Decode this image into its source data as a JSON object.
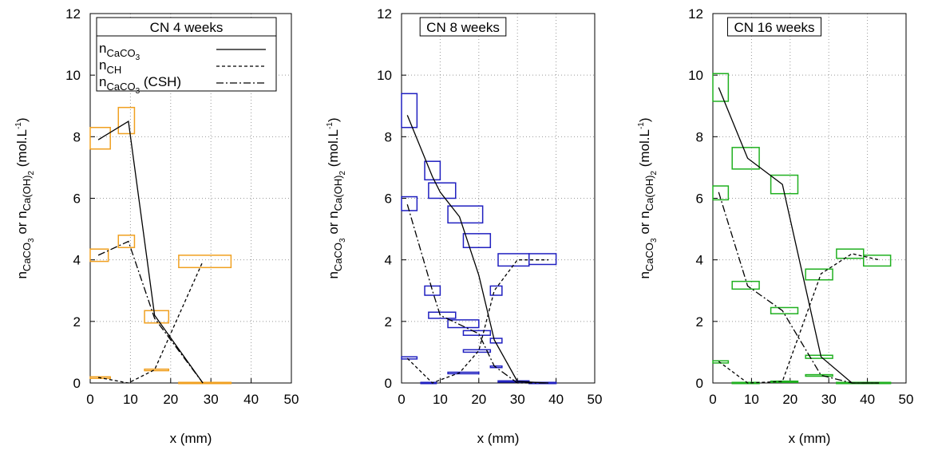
{
  "chart_data": [
    {
      "type": "line",
      "title": "CN 4 weeks",
      "legend": true,
      "grid": true,
      "x_label": "x (mm)",
      "y_label": [
        {
          "text": "n",
          "level": 0
        },
        {
          "text": "CaCO",
          "level": 1
        },
        {
          "text": "3",
          "level": 2
        },
        {
          "text": " or n",
          "level": 0
        },
        {
          "text": "Ca(OH)",
          "level": 1
        },
        {
          "text": "2",
          "level": 2
        },
        {
          "text": " (mol.L",
          "level": 0
        },
        {
          "text": "-1",
          "level": -1
        },
        {
          "text": ")",
          "level": 0
        }
      ],
      "xlim": [
        0,
        50
      ],
      "ylim": [
        0,
        12
      ],
      "xticks": [
        0,
        10,
        20,
        30,
        40,
        50
      ],
      "yticks": [
        0,
        2,
        4,
        6,
        8,
        10,
        12
      ],
      "series": [
        {
          "name": [
            {
              "text": "n",
              "level": 0
            },
            {
              "text": "CaCO",
              "level": 1
            },
            {
              "text": "3",
              "level": 2
            }
          ],
          "style": "solid",
          "color": "#000000",
          "x": [
            2,
            9.5,
            16,
            28
          ],
          "values": [
            7.9,
            8.5,
            2.2,
            0
          ]
        },
        {
          "name": [
            {
              "text": "n",
              "level": 0
            },
            {
              "text": "CH",
              "level": 1
            }
          ],
          "style": "dashed",
          "color": "#000000",
          "x": [
            2,
            9.5,
            16,
            28
          ],
          "values": [
            0.18,
            0,
            0.43,
            3.95
          ]
        },
        {
          "name": [
            {
              "text": "n",
              "level": 0
            },
            {
              "text": "CaCO",
              "level": 1
            },
            {
              "text": "3",
              "level": 2
            },
            {
              "text": " (CSH)",
              "level": 0
            }
          ],
          "style": "dashdot",
          "color": "#000000",
          "x": [
            2,
            9.5,
            16,
            28
          ],
          "values": [
            4.15,
            4.6,
            2.1,
            0
          ]
        }
      ],
      "boxes": {
        "color": "#f0a020",
        "x_low": [
          0,
          7,
          0,
          7,
          13.5,
          22,
          0,
          13.5,
          22
        ],
        "x_high": [
          5,
          11,
          4.5,
          11,
          19.5,
          35,
          5,
          19.5,
          35
        ],
        "y_low": [
          7.6,
          8.1,
          3.95,
          4.4,
          1.95,
          3.75,
          0.15,
          0.4,
          0
        ],
        "y_high": [
          8.3,
          8.95,
          4.35,
          4.8,
          2.35,
          4.15,
          0.2,
          0.45,
          0.02
        ]
      }
    },
    {
      "type": "line",
      "title": "CN 8 weeks",
      "legend": false,
      "grid": true,
      "x_label": "x (mm)",
      "y_label": [
        {
          "text": "n",
          "level": 0
        },
        {
          "text": "CaCO",
          "level": 1
        },
        {
          "text": "3",
          "level": 2
        },
        {
          "text": " or n",
          "level": 0
        },
        {
          "text": "Ca(OH)",
          "level": 1
        },
        {
          "text": "2",
          "level": 2
        },
        {
          "text": " (mol.L",
          "level": 0
        },
        {
          "text": "-1",
          "level": -1
        },
        {
          "text": ")",
          "level": 0
        }
      ],
      "xlim": [
        0,
        50
      ],
      "ylim": [
        0,
        12
      ],
      "xticks": [
        0,
        10,
        20,
        30,
        40,
        50
      ],
      "yticks": [
        0,
        2,
        4,
        6,
        8,
        10,
        12
      ],
      "series": [
        {
          "style": "solid",
          "color": "#000000",
          "x": [
            1.5,
            8,
            10,
            15,
            20,
            24,
            30,
            38
          ],
          "values": [
            8.7,
            6.7,
            6.2,
            5.4,
            3.5,
            1.4,
            0.05,
            0
          ]
        },
        {
          "style": "dashed",
          "color": "#000000",
          "x": [
            1.5,
            8,
            10,
            15,
            20,
            24,
            30,
            38
          ],
          "values": [
            0.8,
            0,
            0.1,
            0.33,
            1.05,
            3,
            4,
            4
          ]
        },
        {
          "style": "dashdot",
          "color": "#000000",
          "x": [
            1.5,
            8,
            10,
            15,
            20,
            24,
            30,
            38
          ],
          "values": [
            5.8,
            3,
            2.2,
            1.9,
            1.6,
            0.55,
            0,
            0
          ]
        }
      ],
      "boxes": {
        "color": "#2020c0",
        "x_low": [
          0,
          0,
          0,
          6,
          6,
          5,
          7,
          7,
          12,
          12,
          12,
          16,
          16,
          16,
          23,
          23,
          23,
          25,
          25,
          33,
          33
        ],
        "x_high": [
          4,
          4,
          4,
          10,
          10,
          9,
          14,
          14,
          21,
          20,
          20,
          23,
          23,
          23,
          26,
          26,
          26,
          33,
          33,
          40,
          40
        ],
        "y_low": [
          8.3,
          5.6,
          0.78,
          6.6,
          2.85,
          0,
          6,
          2.1,
          5.2,
          1.8,
          0.3,
          4.4,
          1.55,
          1,
          2.85,
          1.3,
          0.5,
          3.8,
          0.03,
          3.85,
          0
        ],
        "y_high": [
          9.4,
          6.05,
          0.85,
          7.2,
          3.15,
          0.02,
          6.5,
          2.3,
          5.75,
          2.05,
          0.35,
          4.85,
          1.7,
          1.08,
          3.15,
          1.45,
          0.55,
          4.2,
          0.07,
          4.2,
          0.02
        ]
      }
    },
    {
      "type": "line",
      "title": "CN 16 weeks",
      "legend": false,
      "grid": true,
      "x_label": "x (mm)",
      "y_label": [
        {
          "text": "n",
          "level": 0
        },
        {
          "text": "CaCO",
          "level": 1
        },
        {
          "text": "3",
          "level": 2
        },
        {
          "text": " or n",
          "level": 0
        },
        {
          "text": "Ca(OH)",
          "level": 1
        },
        {
          "text": "2",
          "level": 2
        },
        {
          "text": " (mol.L",
          "level": 0
        },
        {
          "text": "-1",
          "level": -1
        },
        {
          "text": ")",
          "level": 0
        }
      ],
      "xlim": [
        0,
        50
      ],
      "ylim": [
        0,
        12
      ],
      "xticks": [
        0,
        10,
        20,
        30,
        40,
        50
      ],
      "yticks": [
        0,
        2,
        4,
        6,
        8,
        10,
        12
      ],
      "series": [
        {
          "style": "solid",
          "color": "#000000",
          "x": [
            1.5,
            9,
            18,
            28,
            36,
            43
          ],
          "values": [
            9.6,
            7.3,
            6.45,
            0.85,
            0,
            0
          ]
        },
        {
          "style": "dashed",
          "color": "#000000",
          "x": [
            1.5,
            9,
            18,
            28,
            36,
            43
          ],
          "values": [
            0.7,
            0,
            0.05,
            3.55,
            4.2,
            4
          ]
        },
        {
          "style": "dashdot",
          "color": "#000000",
          "x": [
            1.5,
            9,
            18,
            28,
            36,
            43
          ],
          "values": [
            6.2,
            3.15,
            2.35,
            0.25,
            0,
            0
          ]
        }
      ],
      "boxes": {
        "color": "#20b020",
        "x_low": [
          0,
          0,
          0,
          5,
          5,
          5,
          15,
          15,
          15,
          24,
          24,
          24,
          32,
          32,
          39,
          39
        ],
        "x_high": [
          4,
          4,
          4,
          12,
          12,
          12,
          22,
          22,
          22,
          31,
          31,
          31,
          39,
          39,
          46,
          46
        ],
        "y_low": [
          9.15,
          5.95,
          0.65,
          6.95,
          3.05,
          0,
          6.15,
          2.25,
          0.03,
          3.35,
          0.8,
          0.22,
          4.05,
          0,
          3.8,
          0
        ],
        "y_high": [
          10.05,
          6.4,
          0.72,
          7.65,
          3.3,
          0.02,
          6.75,
          2.45,
          0.06,
          3.7,
          0.9,
          0.27,
          4.35,
          0.02,
          4.15,
          0.02
        ]
      }
    }
  ]
}
